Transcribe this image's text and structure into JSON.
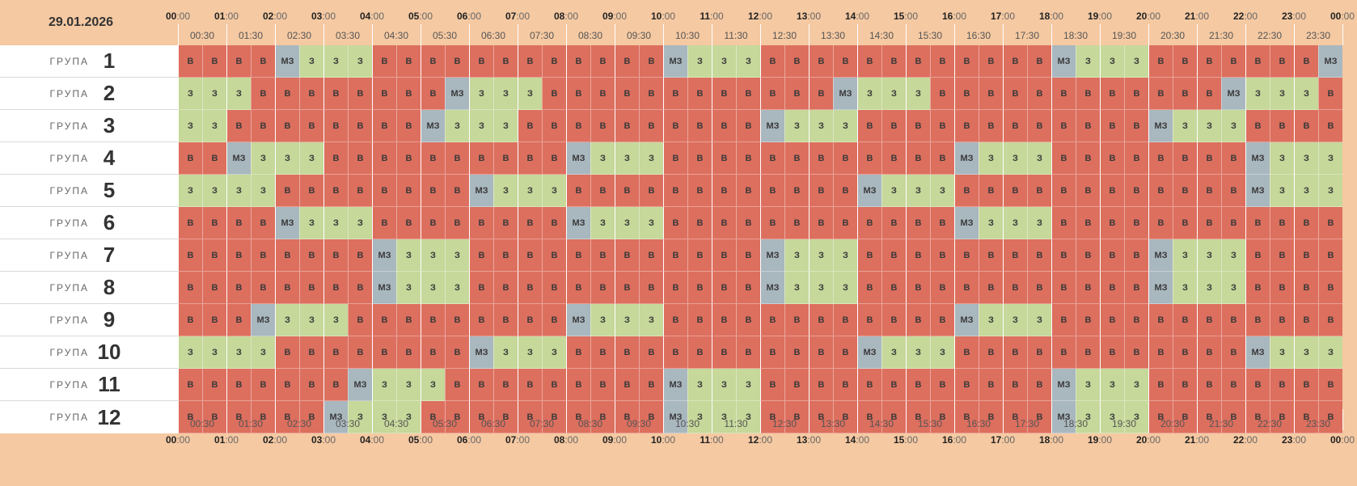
{
  "date": "29.01.2026",
  "ruler": {
    "hours": [
      "00",
      "01",
      "02",
      "03",
      "04",
      "05",
      "06",
      "07",
      "08",
      "09",
      "10",
      "11",
      "12",
      "13",
      "14",
      "15",
      "16",
      "17",
      "18",
      "19",
      "20",
      "21",
      "22",
      "23",
      "00"
    ],
    "minutes_suffix": ":00",
    "half_hours": [
      "00:30",
      "01:30",
      "02:30",
      "03:30",
      "04:30",
      "05:30",
      "06:30",
      "07:30",
      "08:30",
      "09:30",
      "10:30",
      "11:30",
      "12:30",
      "13:30",
      "14:30",
      "15:30",
      "16:30",
      "17:30",
      "18:30",
      "19:30",
      "20:30",
      "21:30",
      "22:30",
      "23:30"
    ]
  },
  "group_word": "ГРУПА",
  "status_labels": {
    "v": "В",
    "z": "З",
    "mz": "МЗ"
  },
  "colors": {
    "v": "#dd6f5e",
    "z": "#c6d89a",
    "mz": "#a9b7bf",
    "background": "#f5c9a2"
  },
  "groups": [
    {
      "number": "1",
      "slots": [
        "v",
        "v",
        "v",
        "v",
        "mz",
        "z",
        "z",
        "z",
        "v",
        "v",
        "v",
        "v",
        "v",
        "v",
        "v",
        "v",
        "v",
        "v",
        "v",
        "v",
        "mz",
        "z",
        "z",
        "z",
        "v",
        "v",
        "v",
        "v",
        "v",
        "v",
        "v",
        "v",
        "v",
        "v",
        "v",
        "v",
        "mz",
        "z",
        "z",
        "z",
        "v",
        "v",
        "v",
        "v",
        "v",
        "v",
        "v",
        "mz"
      ]
    },
    {
      "number": "2",
      "slots": [
        "z",
        "z",
        "z",
        "v",
        "v",
        "v",
        "v",
        "v",
        "v",
        "v",
        "v",
        "mz",
        "z",
        "z",
        "z",
        "v",
        "v",
        "v",
        "v",
        "v",
        "v",
        "v",
        "v",
        "v",
        "v",
        "v",
        "v",
        "mz",
        "z",
        "z",
        "z",
        "v",
        "v",
        "v",
        "v",
        "v",
        "v",
        "v",
        "v",
        "v",
        "v",
        "v",
        "v",
        "mz",
        "z",
        "z",
        "z",
        "v"
      ]
    },
    {
      "number": "3",
      "slots": [
        "z",
        "z",
        "v",
        "v",
        "v",
        "v",
        "v",
        "v",
        "v",
        "v",
        "mz",
        "z",
        "z",
        "z",
        "v",
        "v",
        "v",
        "v",
        "v",
        "v",
        "v",
        "v",
        "v",
        "v",
        "mz",
        "z",
        "z",
        "z",
        "v",
        "v",
        "v",
        "v",
        "v",
        "v",
        "v",
        "v",
        "v",
        "v",
        "v",
        "v",
        "mz",
        "z",
        "z",
        "z",
        "v",
        "v",
        "v",
        "v"
      ]
    },
    {
      "number": "4",
      "slots": [
        "v",
        "v",
        "mz",
        "z",
        "z",
        "z",
        "v",
        "v",
        "v",
        "v",
        "v",
        "v",
        "v",
        "v",
        "v",
        "v",
        "mz",
        "z",
        "z",
        "z",
        "v",
        "v",
        "v",
        "v",
        "v",
        "v",
        "v",
        "v",
        "v",
        "v",
        "v",
        "v",
        "mz",
        "z",
        "z",
        "z",
        "v",
        "v",
        "v",
        "v",
        "v",
        "v",
        "v",
        "v",
        "mz",
        "z",
        "z",
        "z"
      ]
    },
    {
      "number": "5",
      "slots": [
        "z",
        "z",
        "z",
        "z",
        "v",
        "v",
        "v",
        "v",
        "v",
        "v",
        "v",
        "v",
        "mz",
        "z",
        "z",
        "z",
        "v",
        "v",
        "v",
        "v",
        "v",
        "v",
        "v",
        "v",
        "v",
        "v",
        "v",
        "v",
        "mz",
        "z",
        "z",
        "z",
        "v",
        "v",
        "v",
        "v",
        "v",
        "v",
        "v",
        "v",
        "v",
        "v",
        "v",
        "v",
        "mz",
        "z",
        "z",
        "z"
      ]
    },
    {
      "number": "6",
      "slots": [
        "v",
        "v",
        "v",
        "v",
        "mz",
        "z",
        "z",
        "z",
        "v",
        "v",
        "v",
        "v",
        "v",
        "v",
        "v",
        "v",
        "mz",
        "z",
        "z",
        "z",
        "v",
        "v",
        "v",
        "v",
        "v",
        "v",
        "v",
        "v",
        "v",
        "v",
        "v",
        "v",
        "mz",
        "z",
        "z",
        "z",
        "v",
        "v",
        "v",
        "v",
        "v",
        "v",
        "v",
        "v",
        "v",
        "v",
        "v",
        "v"
      ]
    },
    {
      "number": "7",
      "slots": [
        "v",
        "v",
        "v",
        "v",
        "v",
        "v",
        "v",
        "v",
        "mz",
        "z",
        "z",
        "z",
        "v",
        "v",
        "v",
        "v",
        "v",
        "v",
        "v",
        "v",
        "v",
        "v",
        "v",
        "v",
        "mz",
        "z",
        "z",
        "z",
        "v",
        "v",
        "v",
        "v",
        "v",
        "v",
        "v",
        "v",
        "v",
        "v",
        "v",
        "v",
        "mz",
        "z",
        "z",
        "z",
        "v",
        "v",
        "v",
        "v"
      ]
    },
    {
      "number": "8",
      "slots": [
        "v",
        "v",
        "v",
        "v",
        "v",
        "v",
        "v",
        "v",
        "mz",
        "z",
        "z",
        "z",
        "v",
        "v",
        "v",
        "v",
        "v",
        "v",
        "v",
        "v",
        "v",
        "v",
        "v",
        "v",
        "mz",
        "z",
        "z",
        "z",
        "v",
        "v",
        "v",
        "v",
        "v",
        "v",
        "v",
        "v",
        "v",
        "v",
        "v",
        "v",
        "mz",
        "z",
        "z",
        "z",
        "v",
        "v",
        "v",
        "v"
      ]
    },
    {
      "number": "9",
      "slots": [
        "v",
        "v",
        "v",
        "mz",
        "z",
        "z",
        "z",
        "v",
        "v",
        "v",
        "v",
        "v",
        "v",
        "v",
        "v",
        "v",
        "mz",
        "z",
        "z",
        "z",
        "v",
        "v",
        "v",
        "v",
        "v",
        "v",
        "v",
        "v",
        "v",
        "v",
        "v",
        "v",
        "mz",
        "z",
        "z",
        "z",
        "v",
        "v",
        "v",
        "v",
        "v",
        "v",
        "v",
        "v",
        "v",
        "v",
        "v",
        "v"
      ]
    },
    {
      "number": "10",
      "slots": [
        "z",
        "z",
        "z",
        "z",
        "v",
        "v",
        "v",
        "v",
        "v",
        "v",
        "v",
        "v",
        "mz",
        "z",
        "z",
        "z",
        "v",
        "v",
        "v",
        "v",
        "v",
        "v",
        "v",
        "v",
        "v",
        "v",
        "v",
        "v",
        "mz",
        "z",
        "z",
        "z",
        "v",
        "v",
        "v",
        "v",
        "v",
        "v",
        "v",
        "v",
        "v",
        "v",
        "v",
        "v",
        "mz",
        "z",
        "z",
        "z"
      ]
    },
    {
      "number": "11",
      "slots": [
        "v",
        "v",
        "v",
        "v",
        "v",
        "v",
        "v",
        "mz",
        "z",
        "z",
        "z",
        "v",
        "v",
        "v",
        "v",
        "v",
        "v",
        "v",
        "v",
        "v",
        "mz",
        "z",
        "z",
        "z",
        "v",
        "v",
        "v",
        "v",
        "v",
        "v",
        "v",
        "v",
        "v",
        "v",
        "v",
        "v",
        "mz",
        "z",
        "z",
        "z",
        "v",
        "v",
        "v",
        "v",
        "v",
        "v",
        "v",
        "v"
      ]
    },
    {
      "number": "12",
      "slots": [
        "v",
        "v",
        "v",
        "v",
        "v",
        "v",
        "mz",
        "z",
        "z",
        "z",
        "v",
        "v",
        "v",
        "v",
        "v",
        "v",
        "v",
        "v",
        "v",
        "v",
        "mz",
        "z",
        "z",
        "z",
        "v",
        "v",
        "v",
        "v",
        "v",
        "v",
        "v",
        "v",
        "v",
        "v",
        "v",
        "v",
        "mz",
        "z",
        "z",
        "z",
        "v",
        "v",
        "v",
        "v",
        "v",
        "v",
        "v",
        "v"
      ]
    }
  ]
}
